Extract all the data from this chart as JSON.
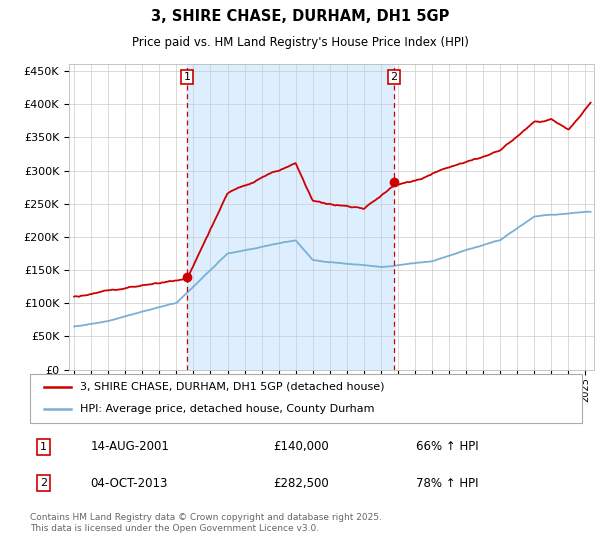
{
  "title": "3, SHIRE CHASE, DURHAM, DH1 5GP",
  "subtitle": "Price paid vs. HM Land Registry's House Price Index (HPI)",
  "legend_property": "3, SHIRE CHASE, DURHAM, DH1 5GP (detached house)",
  "legend_hpi": "HPI: Average price, detached house, County Durham",
  "footer": "Contains HM Land Registry data © Crown copyright and database right 2025.\nThis data is licensed under the Open Government Licence v3.0.",
  "sale1_label": "1",
  "sale1_date": "14-AUG-2001",
  "sale1_price": "£140,000",
  "sale1_hpi": "66% ↑ HPI",
  "sale2_label": "2",
  "sale2_date": "04-OCT-2013",
  "sale2_price": "£282,500",
  "sale2_hpi": "78% ↑ HPI",
  "sale1_year": 2001.62,
  "sale2_year": 2013.75,
  "sale1_price_val": 140000,
  "sale2_price_val": 282500,
  "property_color": "#cc0000",
  "hpi_color": "#7bafd4",
  "vline_color": "#cc0000",
  "shade_color": "#ddeeff",
  "background_color": "#ffffff",
  "grid_color": "#cccccc",
  "ylim": [
    0,
    460000
  ],
  "xlim_start": 1994.7,
  "xlim_end": 2025.5
}
